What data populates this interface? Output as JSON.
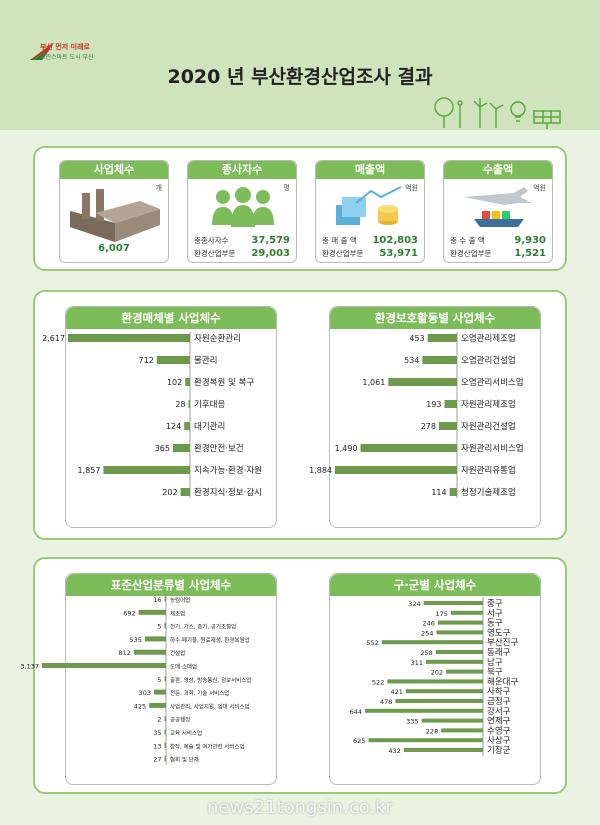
{
  "header": {
    "logo_line1": "부산 먼저 미래로",
    "logo_line2": "그린스마트 도시 부산",
    "title": "2020 년 부산환경산업조사 결과"
  },
  "summary": {
    "businesses": {
      "label": "사업체수",
      "unit": "개",
      "value": "6,007"
    },
    "employees": {
      "label": "종사자수",
      "unit": "명",
      "row1_label": "총종사자수",
      "row1_value": "37,579",
      "row2_label": "환경산업부문",
      "row2_value": "29,003"
    },
    "sales": {
      "label": "매출액",
      "unit": "억원",
      "row1_label": "총 매 출 액",
      "row1_value": "102,803",
      "row2_label": "환경산업부문",
      "row2_value": "53,971"
    },
    "exports": {
      "label": "수출액",
      "unit": "억원",
      "row1_label": "총 수 출 액",
      "row1_value": "9,930",
      "row2_label": "환경산업부문",
      "row2_value": "1,521"
    }
  },
  "colors": {
    "bar": "#6d9a4c",
    "accent": "#7cbd5a",
    "border": "#9cc97a",
    "value_text": "#2e7d32"
  },
  "watermark": "news21tongsin.co.kr",
  "chart_data": [
    {
      "type": "bar",
      "title": "환경매체별 사업체수",
      "orientation": "horizontal-left",
      "categories": [
        "자원순환관리",
        "물관리",
        "환경복원 및 복구",
        "기후대응",
        "대기관리",
        "환경안전·보건",
        "지속가능·환경·자원",
        "환경지식·정보·감시"
      ],
      "values": [
        2617,
        712,
        102,
        28,
        124,
        365,
        1857,
        202
      ],
      "value_labels": [
        "2,617",
        "712",
        "102",
        "28",
        "124",
        "365",
        "1,857",
        "202"
      ]
    },
    {
      "type": "bar",
      "title": "환경보호활동별 사업체수",
      "orientation": "horizontal-left",
      "categories": [
        "오염관리제조업",
        "오염관리건설업",
        "오염관리서비스업",
        "자원관리제조업",
        "자원관리건설업",
        "자원관리서비스업",
        "자원관리유통업",
        "청정기술제조업"
      ],
      "values": [
        453,
        534,
        1061,
        193,
        278,
        1490,
        1884,
        114
      ],
      "value_labels": [
        "453",
        "534",
        "1,061",
        "193",
        "278",
        "1,490",
        "1,884",
        "114"
      ]
    },
    {
      "type": "bar",
      "title": "표준산업분류별 사업체수",
      "orientation": "horizontal-left",
      "categories": [
        "농림어업",
        "제조업",
        "전기, 가스, 증기, 공기조절업",
        "하수·폐기물, 원료재생, 환경복원업",
        "건설업",
        "도매·소매업",
        "출판, 영상, 방송통신, 정보서비스업",
        "전문, 과학, 기술 서비스업",
        "사업관리, 사업지원, 임대 서비스업",
        "공공행정",
        "교육 서비스업",
        "창작, 예술 및 여가관련 서비스업",
        "협회 및 단체"
      ],
      "values": [
        16,
        692,
        5,
        535,
        812,
        3137,
        5,
        303,
        425,
        2,
        35,
        13,
        27
      ],
      "value_labels": [
        "16",
        "692",
        "5",
        "535",
        "812",
        "3,137",
        "5",
        "303",
        "425",
        "2",
        "35",
        "13",
        "27"
      ]
    },
    {
      "type": "bar",
      "title": "구·군별 사업체수",
      "orientation": "horizontal-left",
      "categories": [
        "중구",
        "서구",
        "동구",
        "영도구",
        "부산진구",
        "동래구",
        "남구",
        "북구",
        "해운대구",
        "사하구",
        "금정구",
        "강서구",
        "연제구",
        "수영구",
        "사상구",
        "기장군"
      ],
      "values": [
        324,
        175,
        246,
        254,
        552,
        258,
        311,
        202,
        522,
        421,
        478,
        644,
        335,
        228,
        625,
        432
      ],
      "value_labels": [
        "324",
        "175",
        "246",
        "254",
        "552",
        "258",
        "311",
        "202",
        "522",
        "421",
        "478",
        "644",
        "335",
        "228",
        "625",
        "432"
      ]
    }
  ]
}
